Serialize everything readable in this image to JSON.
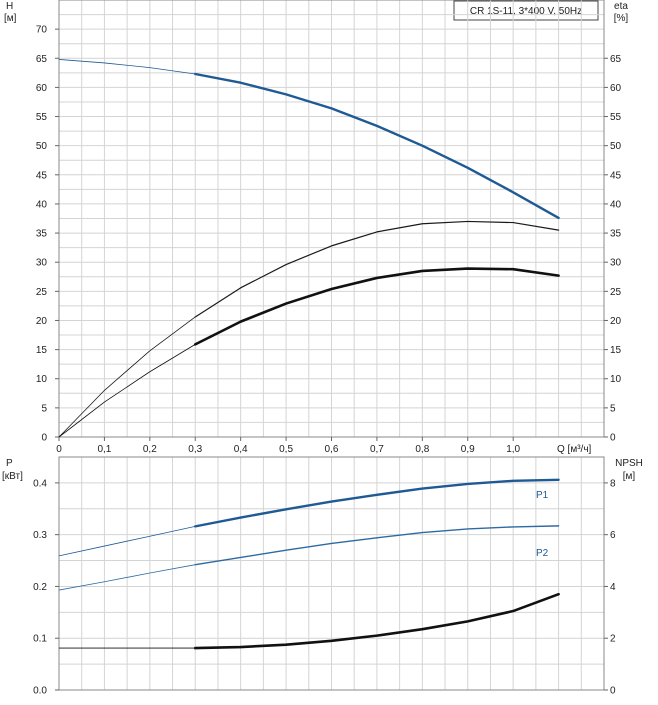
{
  "chart_data": [
    {
      "type": "line",
      "title": "CR 1S-11, 3*400 V, 50Hz",
      "xlabel": "Q [м³/ч]",
      "y_left_label_line1": "H",
      "y_left_label_line2": "[м]",
      "y_right_label_line1": "eta",
      "y_right_label_line2": "[%]",
      "xlim": [
        0,
        1.2
      ],
      "ylim": [
        0,
        75
      ],
      "y_right_lim": [
        0,
        75
      ],
      "x_ticks": [
        "0",
        "0,1",
        "0,2",
        "0,3",
        "0,4",
        "0,5",
        "0,6",
        "0,7",
        "0,8",
        "0,9",
        "1,0"
      ],
      "x_tick_values": [
        0,
        0.1,
        0.2,
        0.3,
        0.4,
        0.5,
        0.6,
        0.7,
        0.8,
        0.9,
        1.0
      ],
      "y_ticks": [
        "0",
        "5",
        "10",
        "15",
        "20",
        "25",
        "30",
        "35",
        "40",
        "45",
        "50",
        "55",
        "60",
        "65",
        "70"
      ],
      "y_tick_values": [
        0,
        5,
        10,
        15,
        20,
        25,
        30,
        35,
        40,
        45,
        50,
        55,
        60,
        65,
        70
      ],
      "y_right_ticks": [
        "0",
        "5",
        "10",
        "15",
        "20",
        "25",
        "30",
        "35",
        "40",
        "45",
        "50",
        "55",
        "60",
        "65"
      ],
      "y_right_tick_values": [
        0,
        5,
        10,
        15,
        20,
        25,
        30,
        35,
        40,
        45,
        50,
        55,
        60,
        65
      ],
      "grid": true,
      "series": [
        {
          "axis": "left",
          "color": "#1f5a94",
          "x": [
            0,
            0.1,
            0.2,
            0.3,
            0.4,
            0.5,
            0.6,
            0.7,
            0.8,
            0.9,
            1.0,
            1.1
          ],
          "y": [
            64.8,
            64.2,
            63.4,
            62.3,
            60.8,
            58.8,
            56.4,
            53.4,
            50.0,
            46.2,
            42.0,
            37.6
          ],
          "bold_from": 0.3
        },
        {
          "axis": "right",
          "color": "#1a1a1a",
          "x": [
            0,
            0.1,
            0.2,
            0.3,
            0.4,
            0.5,
            0.6,
            0.7,
            0.8,
            0.9,
            1.0,
            1.1
          ],
          "y": [
            0,
            8.0,
            14.8,
            20.6,
            25.6,
            29.6,
            32.8,
            35.2,
            36.6,
            37.0,
            36.8,
            35.5
          ],
          "bold_from": 0.3,
          "bold_width": 1.2
        },
        {
          "axis": "right",
          "color": "#111111",
          "x": [
            0,
            0.1,
            0.2,
            0.3,
            0.4,
            0.5,
            0.6,
            0.7,
            0.8,
            0.9,
            1.0,
            1.1
          ],
          "y": [
            0,
            6.0,
            11.2,
            15.9,
            19.8,
            22.9,
            25.4,
            27.3,
            28.5,
            28.9,
            28.8,
            27.7
          ],
          "bold_from": 0.3,
          "bold_width": 2.6
        }
      ]
    },
    {
      "type": "line",
      "xlabel": "",
      "y_left_label_line1": "P",
      "y_left_label_line2": "[кВт]",
      "y_right_label_line1": "NPSH",
      "y_right_label_line2": "[м]",
      "xlim": [
        0,
        1.2
      ],
      "ylim": [
        0,
        0.45
      ],
      "y_right_lim": [
        0,
        9
      ],
      "y_ticks": [
        "0.0",
        "0.1",
        "0.2",
        "0.3",
        "0.4"
      ],
      "y_tick_values": [
        0,
        0.1,
        0.2,
        0.3,
        0.4
      ],
      "y_right_ticks": [
        "0",
        "2",
        "4",
        "6",
        "8"
      ],
      "y_right_tick_values": [
        0,
        2,
        4,
        6,
        8
      ],
      "grid": true,
      "series": [
        {
          "name": "P1",
          "axis": "left",
          "color": "#1f5a94",
          "x": [
            0,
            0.1,
            0.2,
            0.3,
            0.4,
            0.5,
            0.6,
            0.7,
            0.8,
            0.9,
            1.0,
            1.1
          ],
          "y": [
            0.259,
            0.278,
            0.297,
            0.316,
            0.333,
            0.349,
            0.364,
            0.377,
            0.389,
            0.398,
            0.404,
            0.406
          ],
          "bold_from": 0.3
        },
        {
          "name": "P2",
          "axis": "left",
          "color": "#2d6aa3",
          "x": [
            0,
            0.1,
            0.2,
            0.3,
            0.4,
            0.5,
            0.6,
            0.7,
            0.8,
            0.9,
            1.0,
            1.1
          ],
          "y": [
            0.193,
            0.209,
            0.226,
            0.242,
            0.256,
            0.27,
            0.283,
            0.294,
            0.304,
            0.311,
            0.315,
            0.317
          ],
          "bold_from": 0.3,
          "bold_width": 1.4
        },
        {
          "axis": "right",
          "color": "#111111",
          "x": [
            0,
            0.1,
            0.2,
            0.3,
            0.4,
            0.5,
            0.6,
            0.7,
            0.8,
            0.9,
            1.0,
            1.1
          ],
          "y": [
            1.62,
            1.62,
            1.62,
            1.62,
            1.66,
            1.75,
            1.9,
            2.1,
            2.35,
            2.65,
            3.05,
            3.7
          ],
          "bold_from": 0.3,
          "bold_width": 2.6
        }
      ]
    }
  ]
}
